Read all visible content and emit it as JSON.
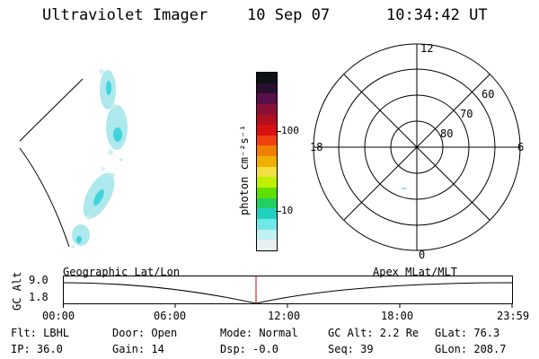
{
  "header": {
    "instrument": "Ultraviolet Imager",
    "date": "10 Sep 07",
    "time": "10:34:42 UT"
  },
  "colorbar": {
    "unit_label": "photon cm⁻²s⁻¹",
    "ticks": [
      "100",
      "10"
    ],
    "colors": [
      "#101018",
      "#2a1030",
      "#5a1048",
      "#8a1038",
      "#b01020",
      "#d81010",
      "#f04010",
      "#f08000",
      "#f0b000",
      "#f0e040",
      "#c0f000",
      "#60e000",
      "#20d060",
      "#20d0c0",
      "#70e8e8",
      "#c0f0f0",
      "#e8f0f0"
    ]
  },
  "polar": {
    "top_label": "12",
    "left_label": "18",
    "right_label": "6",
    "bottom_label": "0",
    "lat_labels": [
      "60",
      "70",
      "80"
    ]
  },
  "timeline": {
    "y_label": "GC Alt",
    "y_top": "9.0",
    "y_bottom": "1.8",
    "left_title": "Geographic Lat/Lon",
    "right_title": "Apex MLat/MLT",
    "time_ticks": [
      "00:00",
      "06:00",
      "12:00",
      "18:00",
      "23:59"
    ],
    "cursor_color": "#cc0000"
  },
  "info": {
    "filter": "Flt: LBHL",
    "ip": "IP: 36.0",
    "door": "Door: Open",
    "gain": "Gain: 14",
    "mode": "Mode: Normal",
    "dsp": "Dsp:   -0.0",
    "gc_alt": "GC Alt: 2.2 Re",
    "seq": "Seq: 39",
    "glat": "GLat:  76.3",
    "glon": "GLon: 208.7"
  }
}
